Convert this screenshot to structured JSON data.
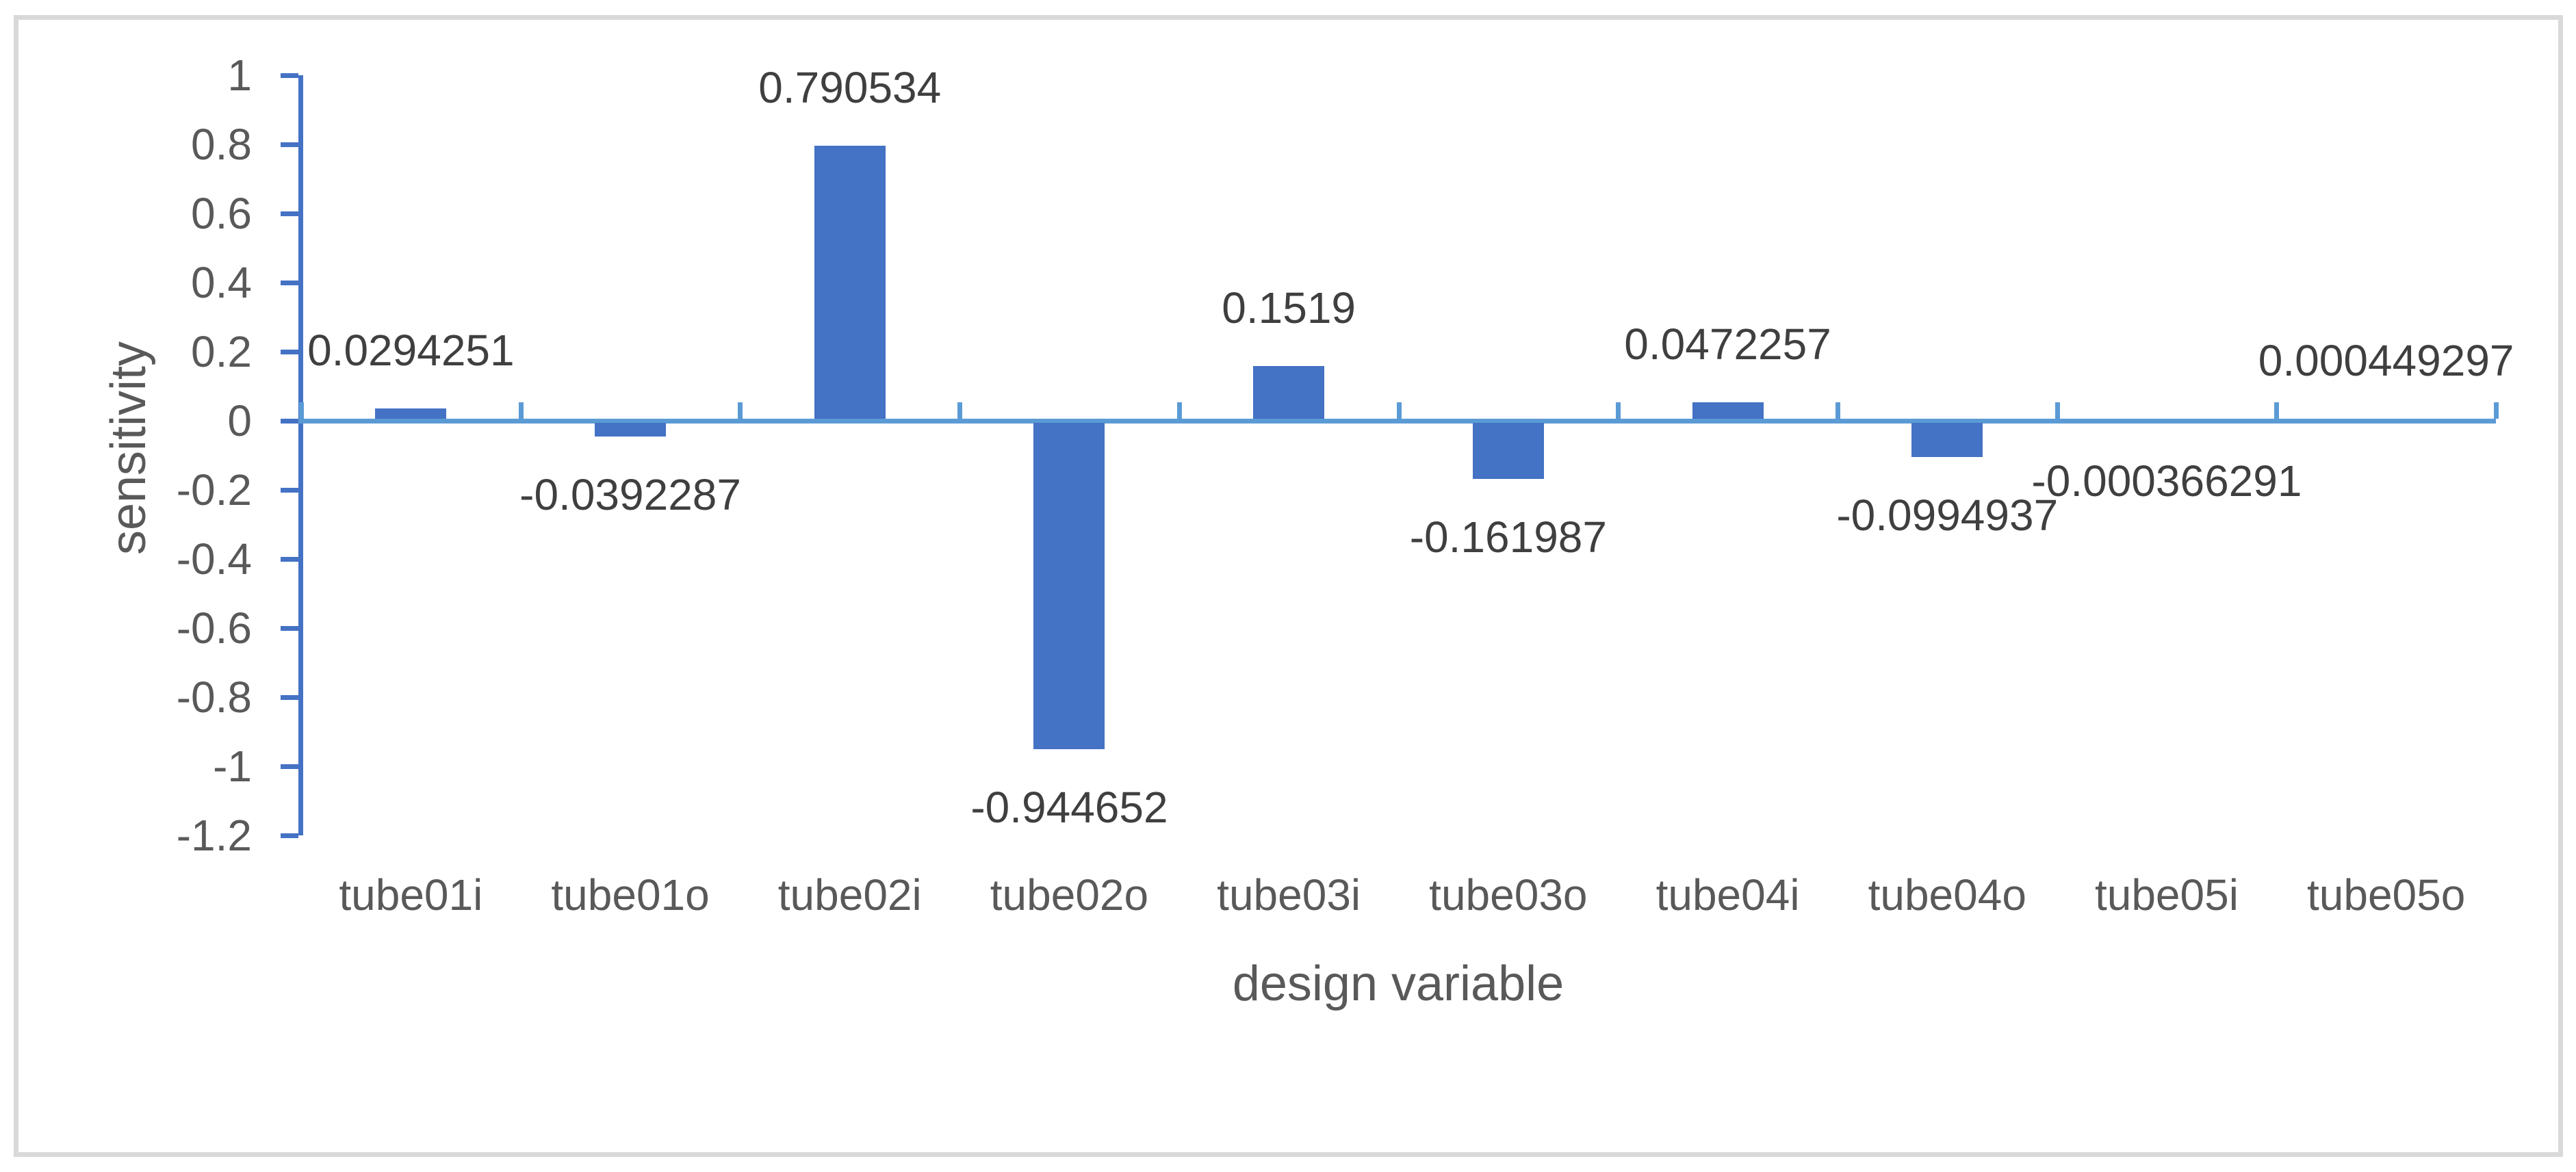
{
  "chart_data": {
    "type": "bar",
    "title": "",
    "categories": [
      "tube01i",
      "tube01o",
      "tube02i",
      "tube02o",
      "tube03i",
      "tube03o",
      "tube04i",
      "tube04o",
      "tube05i",
      "tube05o"
    ],
    "values": [
      0.0294251,
      -0.0392287,
      0.790534,
      -0.944652,
      0.1519,
      -0.161987,
      0.0472257,
      -0.0994937,
      -0.000366291,
      0.000449297
    ],
    "data_labels": [
      "0.0294251",
      "-0.0392287",
      "0.790534",
      "-0.944652",
      "0.1519",
      "-0.161987",
      "0.0472257",
      "-0.0994937",
      "-0.000366291",
      "0.000449297"
    ],
    "xlabel": "design variable",
    "ylabel": "sensitivity",
    "ylim": [
      -1.2,
      1
    ],
    "ytick_step": 0.2,
    "yticks": [
      "1",
      "0.8",
      "0.6",
      "0.4",
      "0.2",
      "0",
      "-0.2",
      "-0.4",
      "-0.6",
      "-0.8",
      "-1",
      "-1.2"
    ],
    "grid": false,
    "legend": "none",
    "colors": {
      "bar": "#4472C4",
      "y_axis": "#4472C4",
      "x_axis": "#5B9BD5",
      "axis_text": "#595959",
      "data_label_text": "#3F3F3F",
      "frame_border": "#D9D9D9"
    }
  }
}
